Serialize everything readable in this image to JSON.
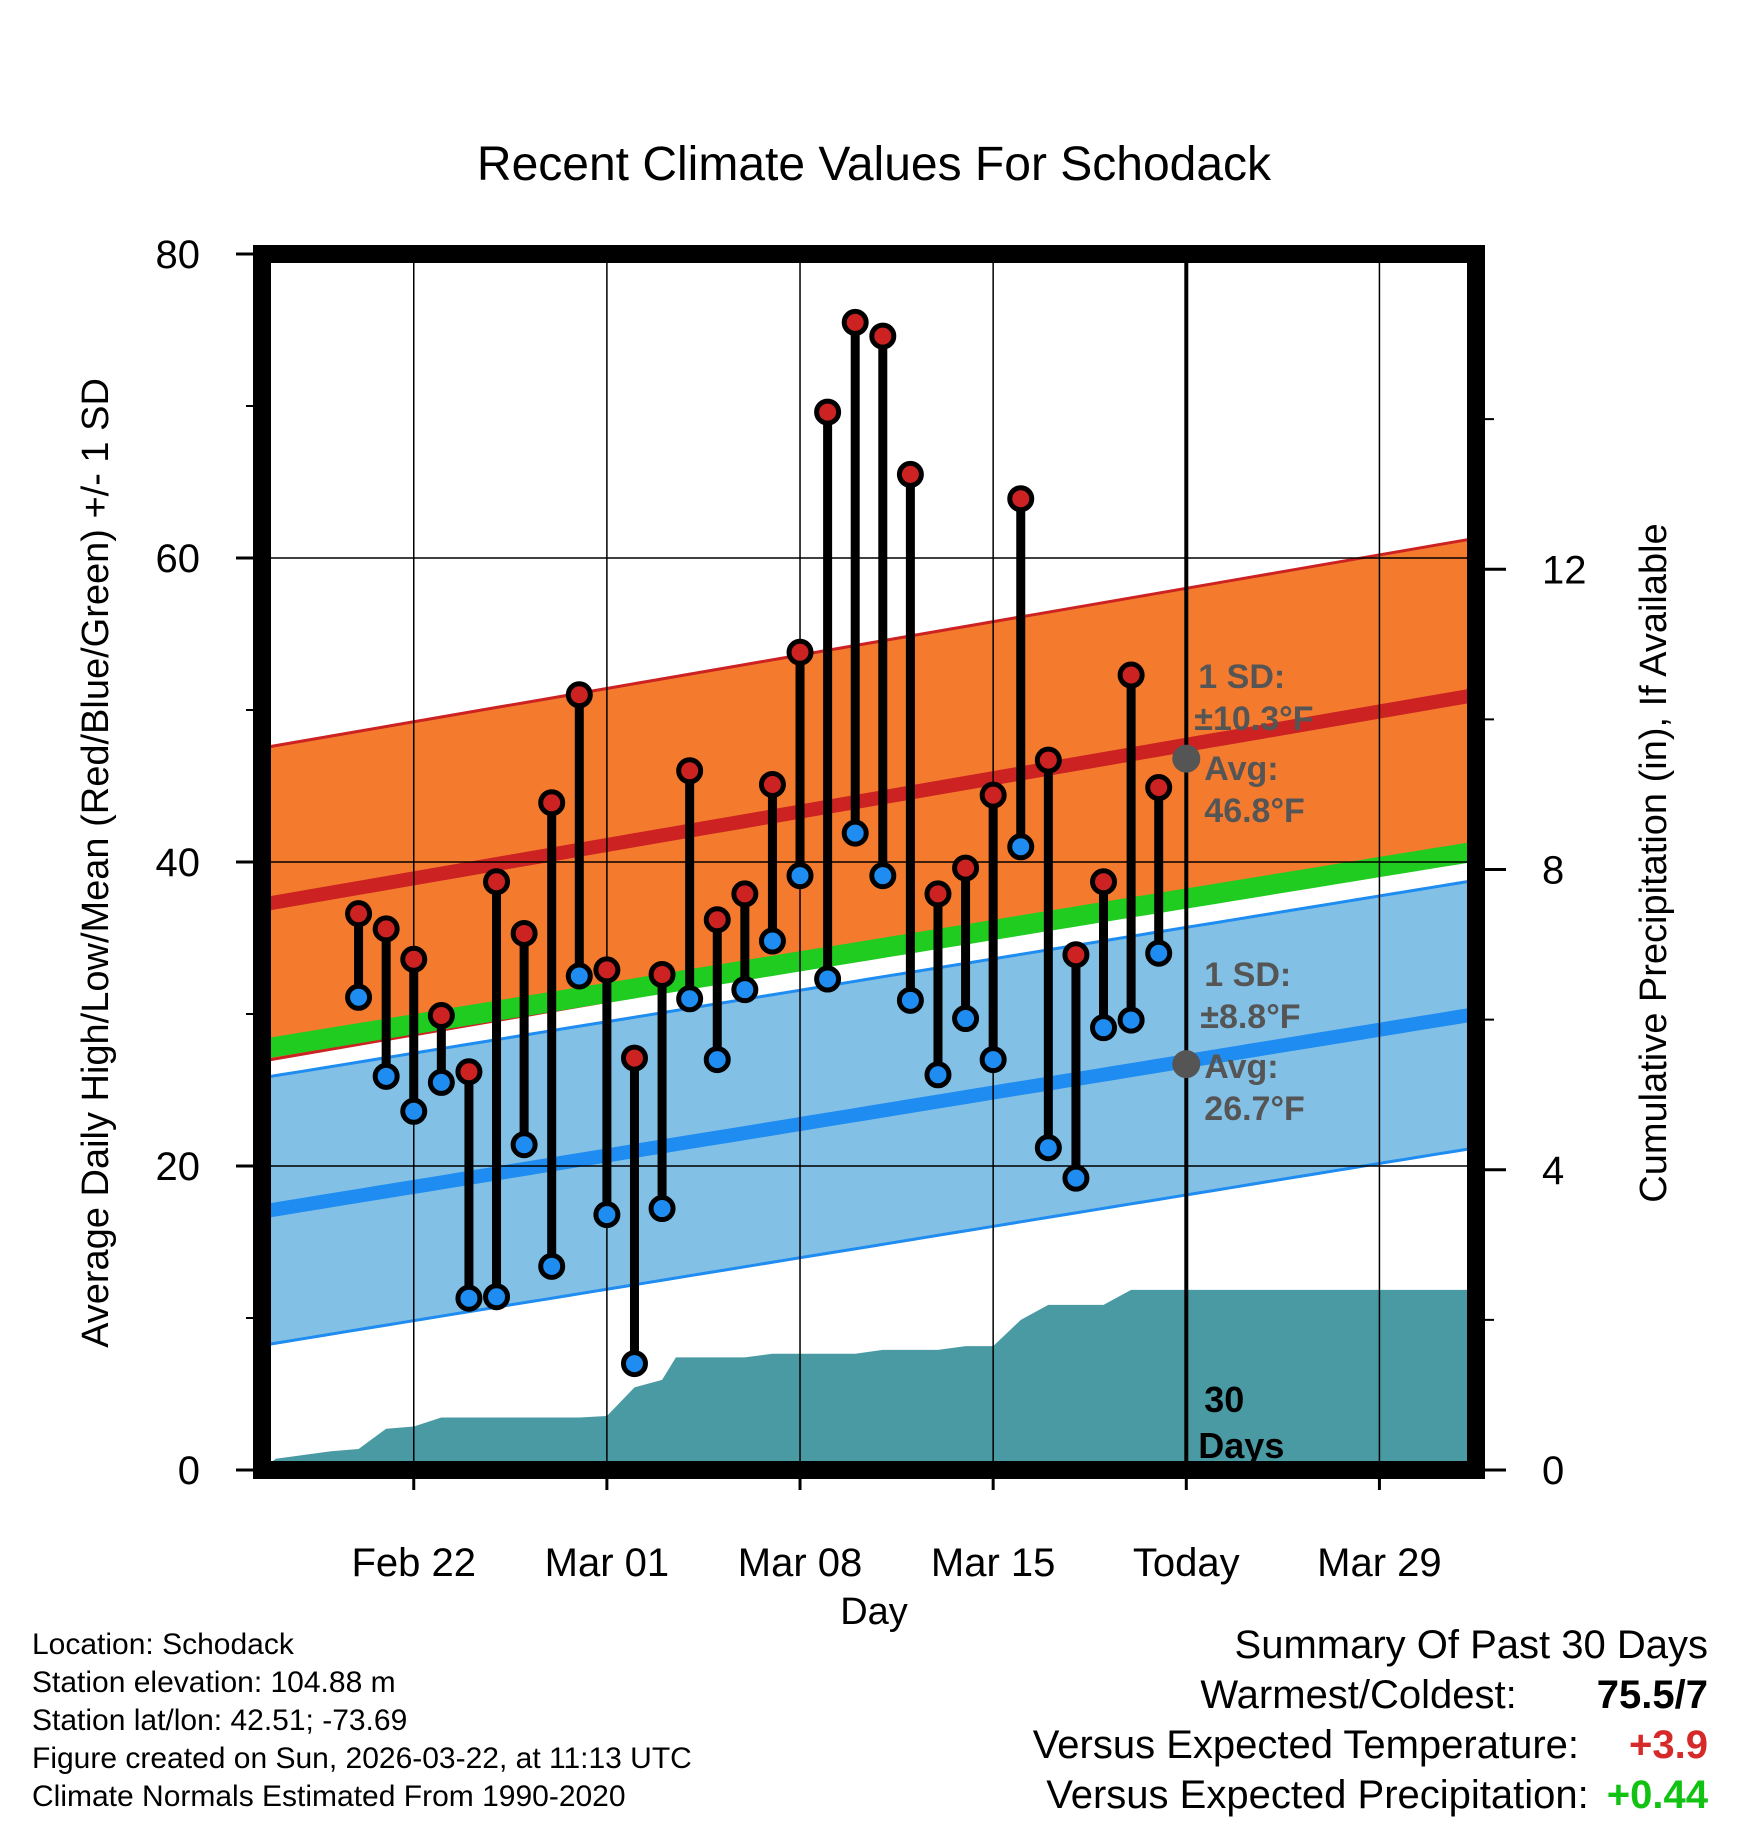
{
  "chart_data": {
    "type": "line",
    "title": "Recent Climate Values For Schodack",
    "xlabel": "Day",
    "ylabel": "Average Daily High/Low/Mean (Red/Blue/Green) +/- 1 SD",
    "y2label": "Cumulative Precipitation (in), If Available",
    "ylim": [
      0,
      80
    ],
    "y2lim": [
      0,
      16.2
    ],
    "yticks": [
      "0",
      "20",
      "40",
      "60",
      "80"
    ],
    "y2ticks": [
      "0",
      "4",
      "8",
      "12"
    ],
    "x_range_days": [
      -33.5,
      10.5
    ],
    "xticks": [
      {
        "day": -28,
        "label": "Feb 22"
      },
      {
        "day": -21,
        "label": "Mar 01"
      },
      {
        "day": -14,
        "label": "Mar 08"
      },
      {
        "day": -7,
        "label": "Mar 15"
      },
      {
        "day": 0,
        "label": "Today"
      },
      {
        "day": 7,
        "label": "Mar 29"
      }
    ],
    "days": [
      -31,
      -30,
      -29,
      -28,
      -27,
      -26,
      -25,
      -24,
      -23,
      -22,
      -21,
      -20,
      -19,
      -18,
      -17,
      -16,
      -15,
      -14,
      -13,
      -12,
      -11,
      -10,
      -9,
      -8,
      -7,
      -6,
      -5,
      -4,
      -3,
      -2,
      -1
    ],
    "highs": [
      36.6,
      35.6,
      33.6,
      29.9,
      26.2,
      38.7,
      35.3,
      43.9,
      51.0,
      32.9,
      27.1,
      32.6,
      46.0,
      36.2,
      37.9,
      45.1,
      53.8,
      69.6,
      75.5,
      74.6,
      65.5,
      37.9,
      39.6,
      44.4,
      63.9,
      46.7,
      33.9,
      38.7,
      52.3,
      44.9
    ],
    "lows": [
      31.1,
      25.9,
      23.6,
      25.5,
      11.3,
      11.4,
      21.4,
      13.4,
      32.5,
      16.8,
      7.0,
      17.2,
      31.0,
      27.0,
      31.6,
      34.8,
      39.1,
      32.3,
      41.9,
      39.1,
      30.9,
      26.0,
      29.7,
      27.0,
      41.0,
      21.2,
      19.2,
      29.1,
      29.6,
      34.0
    ],
    "obs_days": [
      -30,
      -29,
      -28,
      -27,
      -26,
      -25,
      -24,
      -23,
      -22,
      -21,
      -20,
      -19,
      -18,
      -17,
      -16,
      -15,
      -14,
      -13,
      -12,
      -11,
      -10,
      -9,
      -8,
      -7,
      -6,
      -5,
      -4,
      -3,
      -2,
      -1
    ],
    "normal_high": {
      "start": 37.2,
      "end": 51.0
    },
    "normal_high_sd": 10.3,
    "normal_low": {
      "start": 17.0,
      "end": 30.0
    },
    "normal_low_sd": 8.8,
    "normal_mean": {
      "start": 27.7,
      "end": 40.7
    },
    "precip": {
      "days": [
        -33.5,
        -33,
        -32,
        -31,
        -30,
        -29,
        -28,
        -27,
        -26,
        -25,
        -24,
        -23,
        -22,
        -21,
        -20,
        -19,
        -18.5,
        -18,
        -17,
        -16,
        -15,
        -14,
        -13,
        -12,
        -11,
        -10,
        -9,
        -8,
        -7,
        -6,
        -5,
        -4,
        -3,
        -2,
        -1,
        0,
        10.5
      ],
      "values": [
        0,
        0.15,
        0.2,
        0.25,
        0.28,
        0.55,
        0.58,
        0.7,
        0.7,
        0.7,
        0.7,
        0.7,
        0.7,
        0.72,
        1.1,
        1.2,
        1.5,
        1.5,
        1.5,
        1.5,
        1.55,
        1.55,
        1.55,
        1.55,
        1.6,
        1.6,
        1.6,
        1.65,
        1.65,
        2.0,
        2.2,
        2.2,
        2.2,
        2.4,
        2.4,
        2.4,
        2.4
      ]
    },
    "today_annotations": {
      "high_sd_label": "1 SD:",
      "high_sd_value": "±10.3°F",
      "high_avg_label": "Avg:",
      "high_avg_value": "46.8°F",
      "high_avg": 46.8,
      "low_sd_label": "1 SD:",
      "low_sd_value": "±8.8°F",
      "low_avg_label": "Avg:",
      "low_avg_value": "26.7°F",
      "low_avg": 26.7,
      "window_label_1": "30",
      "window_label_2": "Days"
    },
    "colors": {
      "high_band": "#f47b2e",
      "high_line": "#cc2222",
      "low_band": "#82c0e6",
      "low_line": "#1e8cf0",
      "mean_line": "#1fcc1f",
      "precip": "#4a9aa4",
      "high_marker": "#cc2222",
      "low_marker": "#1e8cf0",
      "today_marker": "#555555",
      "annotation_text": "#555555"
    }
  },
  "info": {
    "location": "Location: Schodack",
    "elevation": "Station elevation: 104.88 m",
    "latlon": "Station lat/lon: 42.51; -73.69",
    "created": "Figure created on Sun, 2026-03-22, at 11:13 UTC",
    "normals": "Climate Normals Estimated From 1990-2020"
  },
  "summary": {
    "title": "Summary Of Past 30 Days",
    "warm_cold_label": "Warmest/Coldest:",
    "warm_cold_value": "75.5/7",
    "temp_label": "Versus Expected Temperature:",
    "temp_value": "+3.9",
    "precip_label": "Versus Expected Precipitation:",
    "precip_value": "+0.44"
  }
}
